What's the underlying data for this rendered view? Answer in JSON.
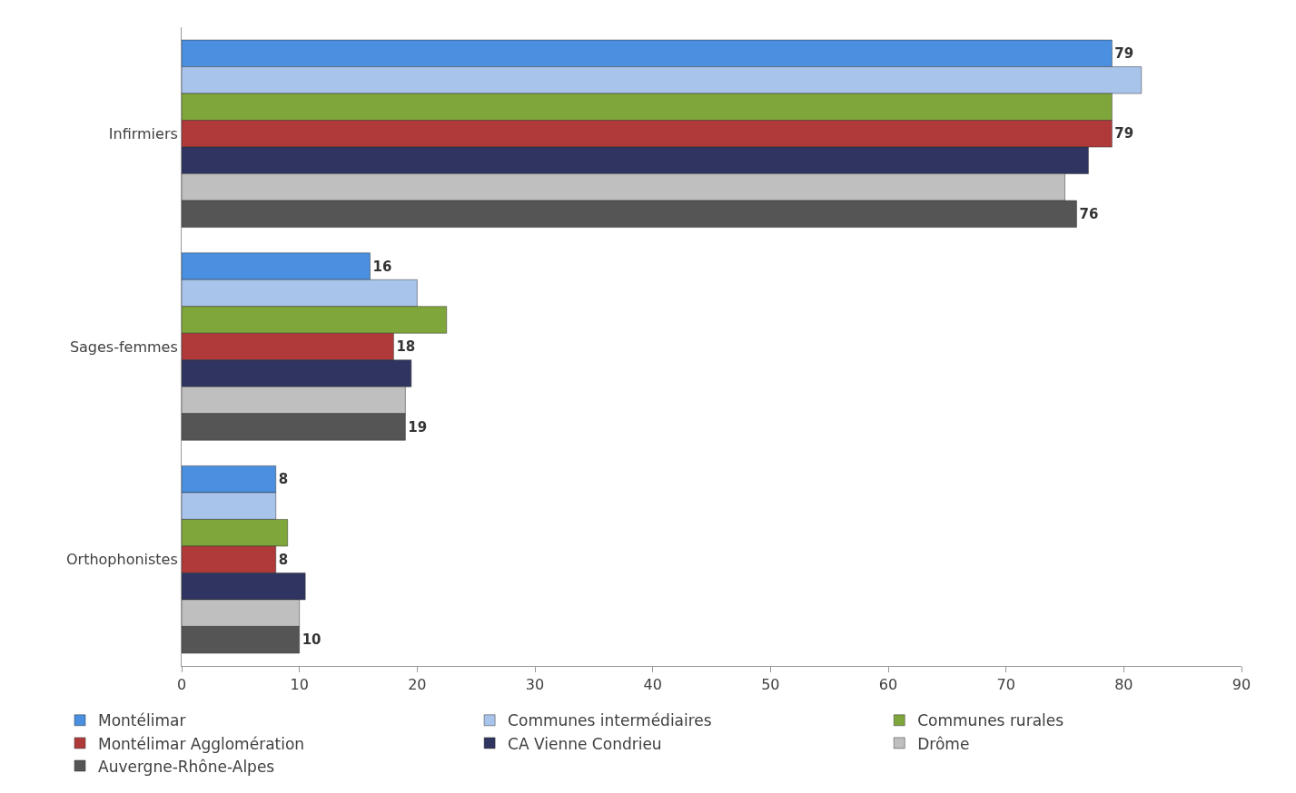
{
  "chart_data": {
    "type": "bar",
    "orientation": "horizontal",
    "categories": [
      "Infirmiers",
      "Sages-femmes",
      "Orthophonistes"
    ],
    "series": [
      {
        "name": "Montélimar",
        "color": "#4a8fe0",
        "values": [
          79,
          16,
          8
        ],
        "value_labels": [
          "79",
          "16",
          "8"
        ]
      },
      {
        "name": "Communes intermédiaires",
        "color": "#a9c4ea",
        "values": [
          81.5,
          20,
          8
        ]
      },
      {
        "name": "Communes rurales",
        "color": "#7fa63a",
        "values": [
          79,
          22.5,
          9
        ]
      },
      {
        "name": "Montélimar Agglomération",
        "color": "#b03a3a",
        "values": [
          79,
          18,
          8
        ],
        "value_labels": [
          "79",
          "18",
          "8"
        ]
      },
      {
        "name": "CA Vienne Condrieu",
        "color": "#2f3560",
        "values": [
          77,
          19.5,
          10.5
        ]
      },
      {
        "name": "Drôme",
        "color": "#bfbfbf",
        "values": [
          75,
          19,
          10
        ]
      },
      {
        "name": "Auvergne-Rhône-Alpes",
        "color": "#555555",
        "values": [
          76,
          19,
          10
        ],
        "value_labels": [
          "76",
          "19",
          "10"
        ]
      }
    ],
    "xlim": [
      0,
      90
    ],
    "xticks": [
      0,
      10,
      20,
      30,
      40,
      50,
      60,
      70,
      80,
      90
    ],
    "legend": "bottom"
  }
}
